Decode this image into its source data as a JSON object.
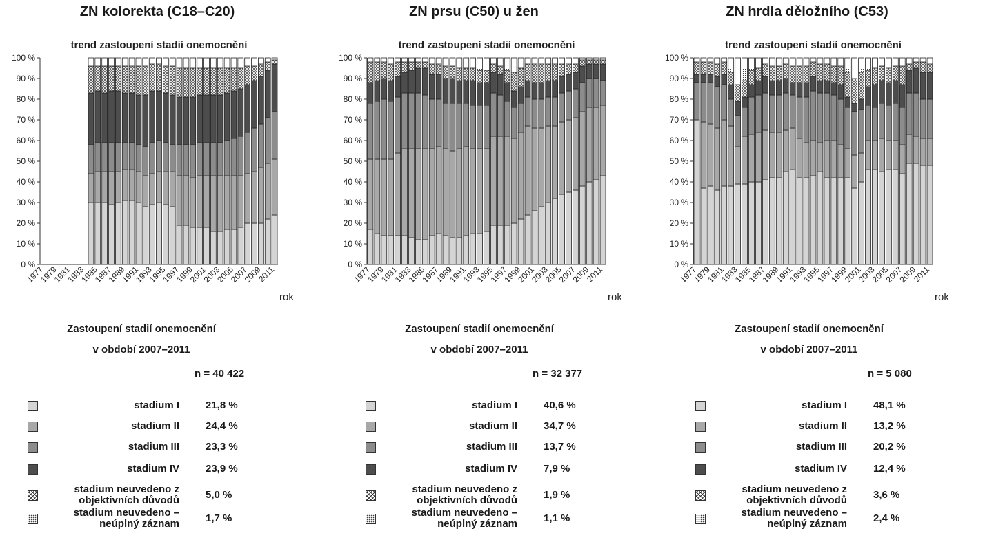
{
  "chart_data": [
    {
      "type": "bar",
      "stacked": true,
      "title": "ZN kolorekta (C18–C20)",
      "subtitle": "trend zastoupení stadií onemocnění",
      "xlabel": "rok",
      "ylim": [
        0,
        100
      ],
      "y_ticks": [
        "0 %",
        "10 %",
        "20 %",
        "30 %",
        "40 %",
        "50 %",
        "60 %",
        "70 %",
        "80 %",
        "90 %",
        "100 %"
      ],
      "x_tick_labels": [
        "1977",
        "1979",
        "1981",
        "1983",
        "1985",
        "1987",
        "1989",
        "1991",
        "1993",
        "1995",
        "1997",
        "1999",
        "2001",
        "2003",
        "2005",
        "2007",
        "2009",
        "2011"
      ],
      "categories": [
        "1977",
        "1978",
        "1979",
        "1980",
        "1981",
        "1982",
        "1983",
        "1984",
        "1985",
        "1986",
        "1987",
        "1988",
        "1989",
        "1990",
        "1991",
        "1992",
        "1993",
        "1994",
        "1995",
        "1996",
        "1997",
        "1998",
        "1999",
        "2000",
        "2001",
        "2002",
        "2003",
        "2004",
        "2005",
        "2006",
        "2007",
        "2008",
        "2009",
        "2010",
        "2011"
      ],
      "series": [
        {
          "name": "stadium I",
          "values": [
            0,
            0,
            0,
            0,
            0,
            0,
            0,
            30,
            30,
            30,
            29,
            30,
            31,
            31,
            30,
            28,
            29,
            30,
            29,
            28,
            19,
            19,
            18,
            18,
            18,
            16,
            16,
            17,
            17,
            18,
            20,
            20,
            20,
            22,
            24
          ]
        },
        {
          "name": "stadium II",
          "values": [
            0,
            0,
            0,
            0,
            0,
            0,
            0,
            14,
            15,
            15,
            16,
            15,
            15,
            15,
            15,
            15,
            15,
            15,
            16,
            17,
            24,
            24,
            24,
            25,
            25,
            27,
            27,
            26,
            26,
            25,
            24,
            25,
            27,
            27,
            27
          ]
        },
        {
          "name": "stadium III",
          "values": [
            0,
            0,
            0,
            0,
            0,
            0,
            0,
            14,
            14,
            14,
            14,
            14,
            13,
            13,
            13,
            14,
            15,
            15,
            14,
            13,
            15,
            15,
            16,
            16,
            16,
            16,
            16,
            17,
            18,
            19,
            20,
            21,
            21,
            22,
            23
          ]
        },
        {
          "name": "stadium IV",
          "values": [
            0,
            0,
            0,
            0,
            0,
            0,
            0,
            25,
            25,
            24,
            25,
            25,
            24,
            24,
            24,
            25,
            25,
            24,
            24,
            24,
            23,
            23,
            23,
            23,
            23,
            23,
            23,
            23,
            23,
            23,
            23,
            23,
            23,
            23,
            23
          ]
        },
        {
          "name": "stadium neuvedeno z objektivních důvodů",
          "values": [
            0,
            0,
            0,
            0,
            0,
            0,
            0,
            13,
            12,
            13,
            12,
            12,
            13,
            13,
            14,
            14,
            13,
            13,
            13,
            14,
            14,
            14,
            14,
            13,
            13,
            13,
            13,
            12,
            11,
            10,
            9,
            7,
            6,
            4,
            2
          ]
        },
        {
          "name": "stadium neuvedeno – neúplný záznam",
          "values": [
            0,
            0,
            0,
            0,
            0,
            0,
            0,
            4,
            4,
            4,
            4,
            4,
            4,
            4,
            4,
            4,
            3,
            3,
            4,
            4,
            5,
            5,
            5,
            5,
            5,
            5,
            5,
            5,
            5,
            5,
            4,
            4,
            3,
            2,
            1
          ]
        }
      ],
      "summary": {
        "title_line1": "Zastoupení stadií onemocnění",
        "title_line2": "v období 2007–2011",
        "n": "n = 40 422",
        "values": [
          "21,8 %",
          "24,4 %",
          "23,3 %",
          "23,9 %",
          "5,0 %",
          "1,7 %"
        ]
      }
    },
    {
      "type": "bar",
      "stacked": true,
      "title": "ZN prsu (C50) u žen",
      "subtitle": "trend zastoupení stadií onemocnění",
      "xlabel": "rok",
      "ylim": [
        0,
        100
      ],
      "y_ticks": [
        "0 %",
        "10 %",
        "20 %",
        "30 %",
        "40 %",
        "50 %",
        "60 %",
        "70 %",
        "80 %",
        "90 %",
        "100 %"
      ],
      "x_tick_labels": [
        "1977",
        "1979",
        "1981",
        "1983",
        "1985",
        "1987",
        "1989",
        "1991",
        "1993",
        "1995",
        "1997",
        "1999",
        "2001",
        "2003",
        "2005",
        "2007",
        "2009",
        "2011"
      ],
      "categories": [
        "1977",
        "1978",
        "1979",
        "1980",
        "1981",
        "1982",
        "1983",
        "1984",
        "1985",
        "1986",
        "1987",
        "1988",
        "1989",
        "1990",
        "1991",
        "1992",
        "1993",
        "1994",
        "1995",
        "1996",
        "1997",
        "1998",
        "1999",
        "2000",
        "2001",
        "2002",
        "2003",
        "2004",
        "2005",
        "2006",
        "2007",
        "2008",
        "2009",
        "2010",
        "2011"
      ],
      "series": [
        {
          "name": "stadium I",
          "values": [
            17,
            15,
            14,
            14,
            14,
            14,
            13,
            12,
            12,
            14,
            15,
            14,
            13,
            13,
            14,
            15,
            15,
            16,
            19,
            19,
            19,
            20,
            22,
            24,
            26,
            28,
            30,
            32,
            34,
            35,
            36,
            38,
            40,
            41,
            43
          ]
        },
        {
          "name": "stadium II",
          "values": [
            34,
            36,
            37,
            37,
            40,
            42,
            43,
            44,
            44,
            42,
            42,
            42,
            42,
            43,
            43,
            41,
            41,
            40,
            43,
            43,
            43,
            41,
            42,
            43,
            40,
            38,
            37,
            35,
            35,
            35,
            35,
            36,
            36,
            35,
            34
          ]
        },
        {
          "name": "stadium III",
          "values": [
            27,
            28,
            29,
            28,
            27,
            27,
            27,
            27,
            26,
            24,
            23,
            22,
            23,
            22,
            21,
            21,
            21,
            21,
            21,
            20,
            17,
            15,
            14,
            14,
            14,
            14,
            14,
            14,
            14,
            14,
            14,
            14,
            14,
            14,
            12
          ]
        },
        {
          "name": "stadium IV",
          "values": [
            10,
            10,
            10,
            10,
            10,
            10,
            11,
            12,
            13,
            12,
            12,
            12,
            12,
            11,
            11,
            12,
            11,
            11,
            10,
            10,
            9,
            8,
            8,
            8,
            8,
            8,
            8,
            8,
            8,
            8,
            8,
            8,
            7,
            7,
            8
          ]
        },
        {
          "name": "stadium neuvedeno z objektivních důvodů",
          "values": [
            10,
            9,
            8,
            8,
            7,
            5,
            4,
            3,
            3,
            5,
            5,
            6,
            6,
            6,
            6,
            6,
            6,
            6,
            4,
            4,
            6,
            9,
            9,
            8,
            9,
            9,
            8,
            8,
            6,
            5,
            4,
            3,
            2,
            2,
            2
          ]
        },
        {
          "name": "stadium neuvedeno – neúplný záznam",
          "values": [
            2,
            2,
            2,
            3,
            2,
            2,
            2,
            2,
            2,
            3,
            3,
            4,
            4,
            5,
            5,
            5,
            6,
            6,
            3,
            4,
            6,
            7,
            5,
            3,
            3,
            3,
            3,
            3,
            3,
            3,
            3,
            1,
            1,
            1,
            1
          ]
        }
      ],
      "summary": {
        "title_line1": "Zastoupení stadií onemocnění",
        "title_line2": "v období 2007–2011",
        "n": "n = 32 377",
        "values": [
          "40,6 %",
          "34,7 %",
          "13,7 %",
          "7,9 %",
          "1,9 %",
          "1,1 %"
        ]
      }
    },
    {
      "type": "bar",
      "stacked": true,
      "title": "ZN hrdla děložního (C53)",
      "subtitle": "trend zastoupení stadií onemocnění",
      "xlabel": "rok",
      "ylim": [
        0,
        100
      ],
      "y_ticks": [
        "0 %",
        "10 %",
        "20 %",
        "30 %",
        "40 %",
        "50 %",
        "60 %",
        "70 %",
        "80 %",
        "90 %",
        "100 %"
      ],
      "x_tick_labels": [
        "1977",
        "1979",
        "1981",
        "1983",
        "1985",
        "1987",
        "1989",
        "1991",
        "1993",
        "1995",
        "1997",
        "1999",
        "2001",
        "2003",
        "2005",
        "2007",
        "2009",
        "2011"
      ],
      "categories": [
        "1977",
        "1978",
        "1979",
        "1980",
        "1981",
        "1982",
        "1983",
        "1984",
        "1985",
        "1986",
        "1987",
        "1988",
        "1989",
        "1990",
        "1991",
        "1992",
        "1993",
        "1994",
        "1995",
        "1996",
        "1997",
        "1998",
        "1999",
        "2000",
        "2001",
        "2002",
        "2003",
        "2004",
        "2005",
        "2006",
        "2007",
        "2008",
        "2009",
        "2010",
        "2011"
      ],
      "series": [
        {
          "name": "stadium I",
          "values": [
            70,
            37,
            38,
            36,
            38,
            38,
            39,
            39,
            40,
            40,
            41,
            42,
            42,
            45,
            46,
            42,
            42,
            43,
            45,
            42,
            42,
            42,
            42,
            37,
            40,
            46,
            46,
            45,
            46,
            46,
            44,
            49,
            49,
            48,
            48
          ]
        },
        {
          "name": "stadium II",
          "values": [
            0,
            32,
            30,
            30,
            32,
            29,
            18,
            23,
            23,
            24,
            24,
            22,
            22,
            20,
            20,
            19,
            17,
            17,
            14,
            18,
            18,
            16,
            14,
            16,
            14,
            14,
            14,
            16,
            14,
            14,
            14,
            14,
            13,
            13,
            13
          ]
        },
        {
          "name": "stadium III",
          "values": [
            18,
            19,
            20,
            20,
            17,
            13,
            15,
            14,
            18,
            18,
            18,
            18,
            18,
            18,
            16,
            20,
            22,
            24,
            24,
            23,
            22,
            22,
            20,
            21,
            21,
            17,
            16,
            17,
            17,
            18,
            18,
            20,
            21,
            19,
            19
          ]
        },
        {
          "name": "stadium IV",
          "values": [
            4,
            4,
            4,
            5,
            5,
            7,
            7,
            5,
            6,
            7,
            8,
            7,
            7,
            7,
            6,
            7,
            7,
            7,
            6,
            6,
            6,
            7,
            5,
            4,
            5,
            9,
            11,
            11,
            11,
            11,
            11,
            11,
            12,
            13,
            13
          ]
        },
        {
          "name": "stadium neuvedeno z objektivních důvodů",
          "values": [
            6,
            6,
            6,
            6,
            6,
            6,
            8,
            8,
            7,
            6,
            6,
            7,
            7,
            7,
            8,
            8,
            8,
            7,
            8,
            8,
            8,
            9,
            12,
            12,
            13,
            8,
            8,
            7,
            7,
            7,
            9,
            3,
            3,
            5,
            4
          ]
        },
        {
          "name": "stadium neuvedeno – neúplný záznam",
          "values": [
            2,
            2,
            2,
            3,
            2,
            7,
            13,
            11,
            6,
            5,
            3,
            4,
            4,
            3,
            4,
            4,
            4,
            2,
            3,
            3,
            4,
            4,
            7,
            10,
            7,
            6,
            5,
            4,
            5,
            4,
            4,
            3,
            2,
            2,
            3
          ]
        }
      ],
      "summary": {
        "title_line1": "Zastoupení stadií onemocnění",
        "title_line2": "v období 2007–2011",
        "n": "n = 5 080",
        "values": [
          "48,1 %",
          "13,2 %",
          "20,2 %",
          "12,4 %",
          "3,6 %",
          "2,4 %"
        ]
      }
    }
  ],
  "legend": [
    {
      "label_line1": "stadium I",
      "label_line2": "",
      "color": "#d4d4d4",
      "pattern": "solid"
    },
    {
      "label_line1": "stadium II",
      "label_line2": "",
      "color": "#a8a8a8",
      "pattern": "solid"
    },
    {
      "label_line1": "stadium III",
      "label_line2": "",
      "color": "#8c8c8c",
      "pattern": "solid"
    },
    {
      "label_line1": "stadium IV",
      "label_line2": "",
      "color": "#4d4d4d",
      "pattern": "solid"
    },
    {
      "label_line1": "stadium neuvedeno z",
      "label_line2": "objektivních důvodů",
      "color": "#ffffff",
      "pattern": "crosshatch"
    },
    {
      "label_line1": "stadium neuvedeno –",
      "label_line2": "neúplný záznam",
      "color": "#ffffff",
      "pattern": "dots"
    }
  ]
}
